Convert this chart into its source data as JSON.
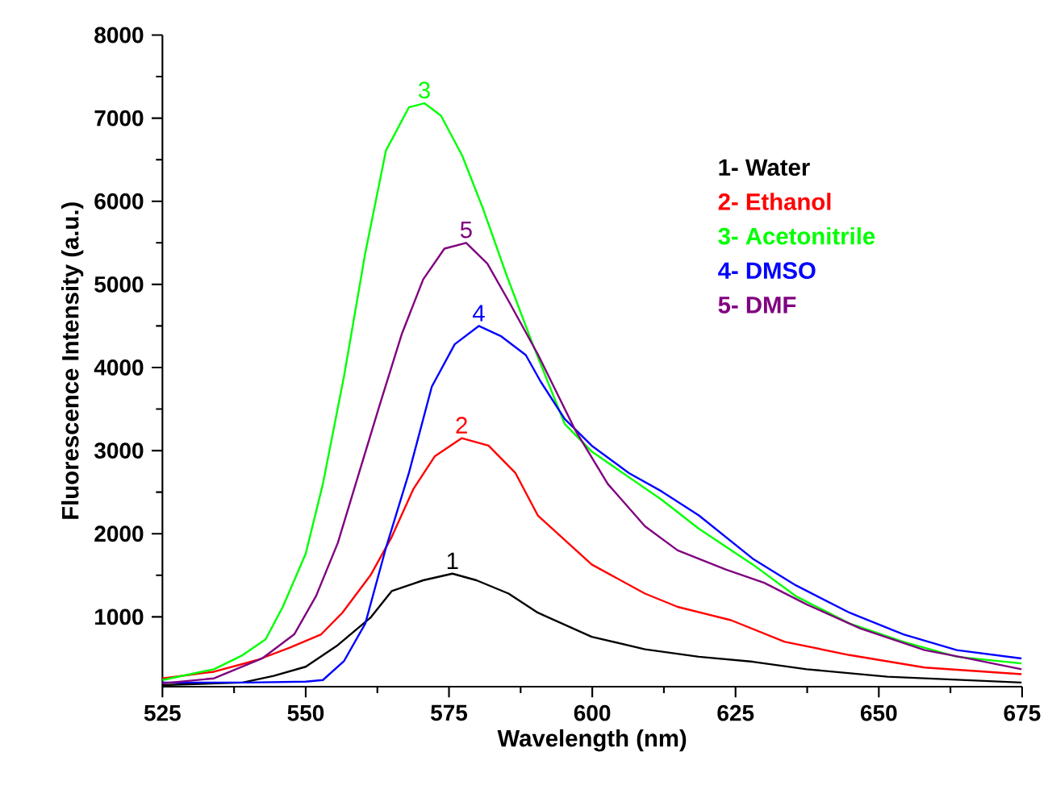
{
  "chart_data": {
    "type": "line",
    "xlabel": "Wavelength (nm)",
    "ylabel": "Fluorescence Intensity (a.u.)",
    "xlim": [
      525,
      675
    ],
    "xticks": [
      525,
      550,
      575,
      600,
      625,
      650,
      675
    ],
    "ylim": [
      160,
      8000
    ],
    "yticks": [
      1000,
      2000,
      3000,
      4000,
      5000,
      6000,
      7000,
      8000
    ],
    "legend": "top right",
    "marker": "none",
    "line_style": "solid",
    "grid": false,
    "series": [
      {
        "name": "1- Water",
        "color": "#000000",
        "x": [
          525,
          539,
          544.4,
          550,
          555.6,
          561.3,
          565,
          570.5,
          575.6,
          579.8,
          585.4,
          590.5,
          599.9,
          609.2,
          618.6,
          628,
          637.4,
          651.5,
          674.9
        ],
        "values": [
          180,
          210,
          290,
          400,
          660,
          990,
          1310,
          1440,
          1520,
          1440,
          1280,
          1050,
          760,
          610,
          520,
          460,
          370,
          280,
          210
        ]
      },
      {
        "name": "2- Ethanol",
        "color": "#ff0000",
        "x": [
          525,
          534,
          541.5,
          547.2,
          552.7,
          556.4,
          561.3,
          565,
          568.8,
          572.5,
          577.2,
          581.9,
          586.6,
          590.5,
          599.9,
          609.2,
          614.9,
          624.2,
          633.6,
          644.9,
          658,
          674.9
        ],
        "values": [
          260,
          340,
          480,
          630,
          790,
          1050,
          1500,
          1960,
          2540,
          2930,
          3150,
          3060,
          2730,
          2220,
          1630,
          1280,
          1120,
          960,
          700,
          540,
          390,
          310
        ]
      },
      {
        "name": "3- Acetonitrile",
        "color": "#00ff00",
        "x": [
          525,
          534,
          539,
          543,
          546,
          550,
          553,
          556.7,
          560.4,
          564,
          568,
          570.7,
          573.6,
          577.3,
          581,
          585,
          589.5,
          595.2,
          599.9,
          606.4,
          612.1,
          618.6,
          628,
          635.5,
          644.9,
          654.3,
          663.6,
          674.9
        ],
        "values": [
          240,
          370,
          540,
          730,
          1120,
          1760,
          2600,
          3900,
          5380,
          6610,
          7130,
          7180,
          7030,
          6550,
          5900,
          5120,
          4300,
          3320,
          2990,
          2680,
          2410,
          2060,
          1630,
          1250,
          920,
          700,
          520,
          440
        ]
      },
      {
        "name": "4- DMSO",
        "color": "#0000ff",
        "x": [
          525,
          540,
          550,
          553,
          556.7,
          560.4,
          564,
          568,
          572,
          576,
          580.2,
          584,
          588.4,
          591,
          595.2,
          599.9,
          606.4,
          612.1,
          618.6,
          628,
          635.5,
          644.9,
          654.3,
          663.6,
          674.9
        ],
        "values": [
          210,
          210,
          220,
          240,
          470,
          920,
          1830,
          2730,
          3770,
          4280,
          4500,
          4380,
          4150,
          3830,
          3380,
          3060,
          2730,
          2510,
          2220,
          1700,
          1380,
          1050,
          790,
          600,
          500
        ]
      },
      {
        "name": "5- DMF",
        "color": "#800080",
        "x": [
          525,
          534,
          542.4,
          548,
          551.8,
          555.6,
          559.3,
          563,
          566.8,
          570.5,
          574.2,
          578,
          581.7,
          585.4,
          590.5,
          597,
          602.7,
          609.2,
          614.9,
          623.3,
          630,
          637.4,
          646.8,
          658,
          665.5,
          674.9
        ],
        "values": [
          200,
          260,
          500,
          790,
          1250,
          1890,
          2730,
          3570,
          4410,
          5060,
          5430,
          5500,
          5250,
          4800,
          4160,
          3250,
          2600,
          2090,
          1800,
          1570,
          1410,
          1150,
          860,
          600,
          500,
          370
        ]
      }
    ],
    "annotations": [
      "1",
      "2",
      "3",
      "4",
      "5"
    ]
  }
}
